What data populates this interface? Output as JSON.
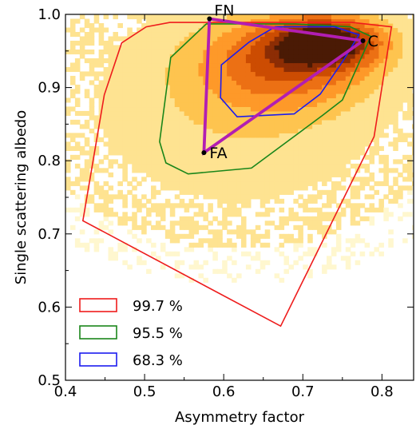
{
  "chart_data": {
    "type": "scatter",
    "title": "",
    "xlabel": "Asymmetry factor",
    "ylabel": "Single scattering albedo",
    "xlim": [
      0.4,
      0.84
    ],
    "ylim": [
      0.5,
      1.0
    ],
    "xticks": [
      0.4,
      0.5,
      0.6,
      0.7,
      0.8
    ],
    "xtick_labels": [
      "0.4",
      "0.5",
      "0.6",
      "0.7",
      "0.8"
    ],
    "yticks": [
      0.5,
      0.6,
      0.7,
      0.8,
      0.9,
      1.0
    ],
    "ytick_labels": [
      "0.5",
      "0.6",
      "0.7",
      "0.8",
      "0.9",
      "1.0"
    ],
    "grid": false,
    "legend_position": "bottom-left",
    "background": "2D density histogram (yellow-orange-dark red) peaking near asymmetry 0.72–0.74, albedo 0.96–0.97",
    "density_colors": [
      "#fff7cf",
      "#fee391",
      "#fec44f",
      "#fe9929",
      "#ec7014",
      "#cc4c02",
      "#8c2d04",
      "#4a1a05"
    ],
    "contours": [
      {
        "name": "99.7 %",
        "color": "#ee1c1c",
        "points": [
          [
            0.471,
            0.961
          ],
          [
            0.502,
            0.983
          ],
          [
            0.532,
            0.989
          ],
          [
            0.667,
            0.989
          ],
          [
            0.762,
            0.989
          ],
          [
            0.812,
            0.983
          ],
          [
            0.79,
            0.833
          ],
          [
            0.672,
            0.574
          ],
          [
            0.422,
            0.718
          ],
          [
            0.449,
            0.89
          ]
        ]
      },
      {
        "name": "95.5 %",
        "color": "#1a861a",
        "points": [
          [
            0.533,
            0.941
          ],
          [
            0.578,
            0.987
          ],
          [
            0.69,
            0.987
          ],
          [
            0.76,
            0.983
          ],
          [
            0.786,
            0.97
          ],
          [
            0.75,
            0.883
          ],
          [
            0.725,
            0.862
          ],
          [
            0.635,
            0.79
          ],
          [
            0.555,
            0.782
          ],
          [
            0.527,
            0.797
          ],
          [
            0.519,
            0.826
          ]
        ]
      },
      {
        "name": "68.3 %",
        "color": "#1c1cee",
        "points": [
          [
            0.597,
            0.931
          ],
          [
            0.632,
            0.962
          ],
          [
            0.665,
            0.983
          ],
          [
            0.74,
            0.983
          ],
          [
            0.771,
            0.972
          ],
          [
            0.75,
            0.935
          ],
          [
            0.722,
            0.891
          ],
          [
            0.689,
            0.864
          ],
          [
            0.617,
            0.86
          ],
          [
            0.596,
            0.886
          ]
        ]
      }
    ],
    "triangle": {
      "color": "#b21eb2",
      "vertices": [
        {
          "label": "FN",
          "x": 0.582,
          "y": 0.994
        },
        {
          "label": "C",
          "x": 0.776,
          "y": 0.964
        },
        {
          "label": "FA",
          "x": 0.575,
          "y": 0.811
        }
      ]
    },
    "legend": [
      {
        "label": "99.7 %",
        "color": "#ee1c1c"
      },
      {
        "label": "95.5 %",
        "color": "#1a861a"
      },
      {
        "label": "68.3 %",
        "color": "#1c1cee"
      }
    ]
  }
}
